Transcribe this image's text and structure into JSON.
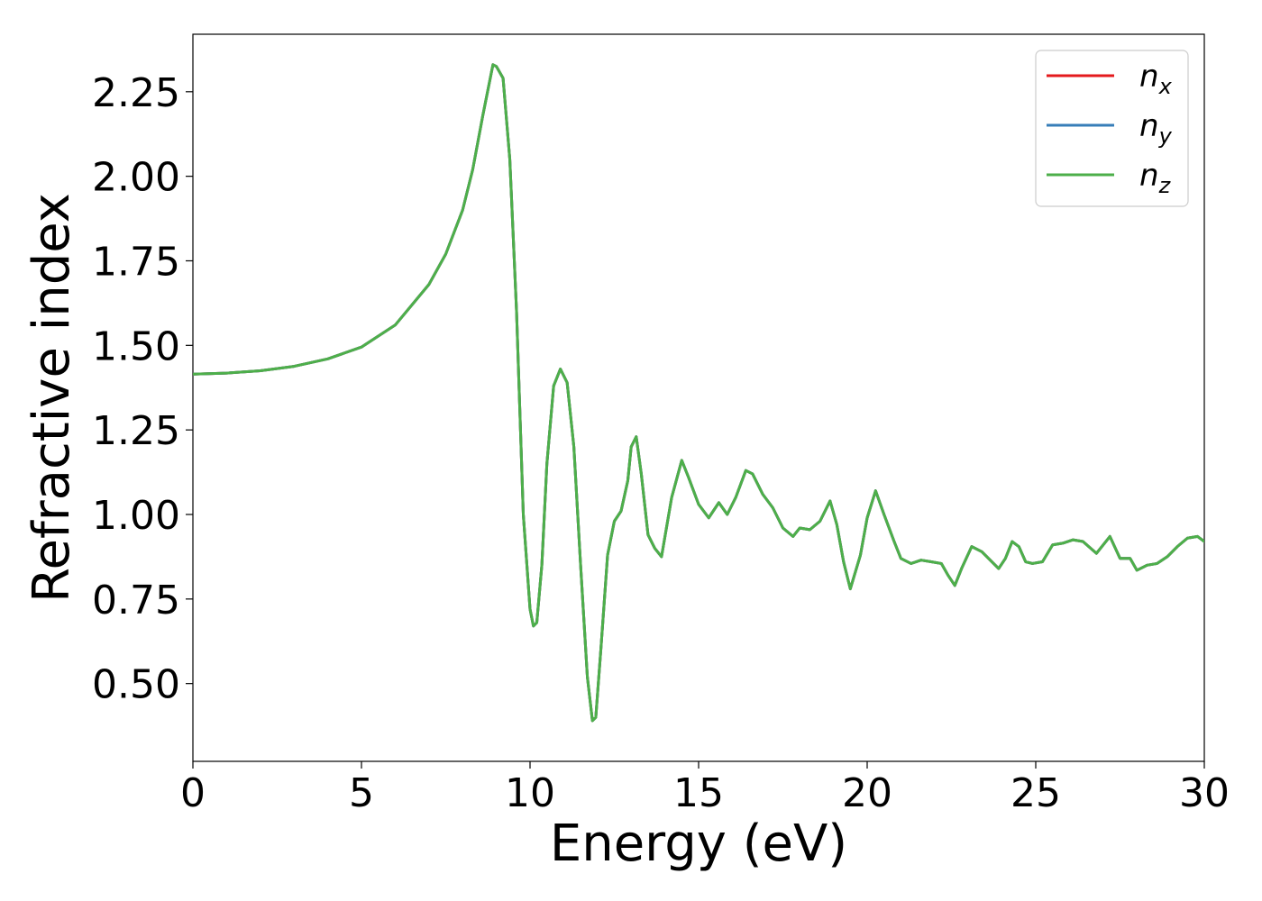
{
  "chart_data": {
    "type": "line",
    "title": "",
    "xlabel": "Energy (eV)",
    "ylabel": "Refractive index",
    "xlim": [
      0,
      30
    ],
    "ylim": [
      0.27,
      2.42
    ],
    "xticks": [
      0,
      5,
      10,
      15,
      20,
      25,
      30
    ],
    "xtick_labels": [
      "0",
      "5",
      "10",
      "15",
      "20",
      "25",
      "30"
    ],
    "yticks": [
      0.5,
      0.75,
      1.0,
      1.25,
      1.5,
      1.75,
      2.0,
      2.25
    ],
    "ytick_labels": [
      "0.50",
      "0.75",
      "1.00",
      "1.25",
      "1.50",
      "1.75",
      "2.00",
      "2.25"
    ],
    "grid": false,
    "legend_position": "top-right",
    "x": [
      0,
      1,
      2,
      3,
      4,
      5,
      6,
      7,
      7.5,
      8,
      8.3,
      8.6,
      8.9,
      9.0,
      9.2,
      9.4,
      9.6,
      9.8,
      10.0,
      10.1,
      10.2,
      10.35,
      10.5,
      10.7,
      10.9,
      11.1,
      11.3,
      11.5,
      11.7,
      11.85,
      11.95,
      12.1,
      12.3,
      12.5,
      12.7,
      12.9,
      13.0,
      13.15,
      13.3,
      13.5,
      13.7,
      13.9,
      14.2,
      14.5,
      14.7,
      15.0,
      15.3,
      15.6,
      15.85,
      16.1,
      16.4,
      16.6,
      16.9,
      17.2,
      17.5,
      17.8,
      18.0,
      18.3,
      18.6,
      18.9,
      19.1,
      19.3,
      19.5,
      19.8,
      20.0,
      20.25,
      20.5,
      20.8,
      21.0,
      21.3,
      21.6,
      21.9,
      22.2,
      22.4,
      22.6,
      22.8,
      23.1,
      23.4,
      23.7,
      23.9,
      24.1,
      24.3,
      24.5,
      24.7,
      24.9,
      25.2,
      25.5,
      25.8,
      26.1,
      26.4,
      26.8,
      27.2,
      27.5,
      27.8,
      28.0,
      28.3,
      28.6,
      28.9,
      29.2,
      29.5,
      29.8,
      30.0
    ],
    "series": [
      {
        "name": "n_x",
        "color": "#e41a1c",
        "values": [
          1.415,
          1.418,
          1.425,
          1.438,
          1.46,
          1.495,
          1.56,
          1.68,
          1.77,
          1.9,
          2.02,
          2.18,
          2.33,
          2.325,
          2.29,
          2.05,
          1.6,
          1.0,
          0.72,
          0.67,
          0.68,
          0.85,
          1.15,
          1.38,
          1.43,
          1.39,
          1.2,
          0.85,
          0.52,
          0.39,
          0.4,
          0.6,
          0.88,
          0.98,
          1.01,
          1.1,
          1.2,
          1.23,
          1.12,
          0.94,
          0.9,
          0.875,
          1.05,
          1.16,
          1.11,
          1.03,
          0.99,
          1.035,
          1.0,
          1.05,
          1.13,
          1.12,
          1.06,
          1.02,
          0.96,
          0.935,
          0.96,
          0.955,
          0.98,
          1.04,
          0.97,
          0.86,
          0.78,
          0.88,
          0.99,
          1.07,
          1.0,
          0.92,
          0.87,
          0.855,
          0.865,
          0.86,
          0.855,
          0.82,
          0.79,
          0.84,
          0.905,
          0.89,
          0.86,
          0.84,
          0.87,
          0.92,
          0.905,
          0.86,
          0.855,
          0.86,
          0.91,
          0.915,
          0.925,
          0.92,
          0.885,
          0.935,
          0.87,
          0.87,
          0.835,
          0.85,
          0.855,
          0.875,
          0.905,
          0.93,
          0.935,
          0.92
        ]
      },
      {
        "name": "n_y",
        "color": "#377eb8",
        "values": [
          1.415,
          1.418,
          1.425,
          1.438,
          1.46,
          1.495,
          1.56,
          1.68,
          1.77,
          1.9,
          2.02,
          2.18,
          2.33,
          2.325,
          2.29,
          2.05,
          1.6,
          1.0,
          0.72,
          0.67,
          0.68,
          0.85,
          1.15,
          1.38,
          1.43,
          1.39,
          1.2,
          0.85,
          0.52,
          0.39,
          0.4,
          0.6,
          0.88,
          0.98,
          1.01,
          1.1,
          1.2,
          1.23,
          1.12,
          0.94,
          0.9,
          0.875,
          1.05,
          1.16,
          1.11,
          1.03,
          0.99,
          1.035,
          1.0,
          1.05,
          1.13,
          1.12,
          1.06,
          1.02,
          0.96,
          0.935,
          0.96,
          0.955,
          0.98,
          1.04,
          0.97,
          0.86,
          0.78,
          0.88,
          0.99,
          1.07,
          1.0,
          0.92,
          0.87,
          0.855,
          0.865,
          0.86,
          0.855,
          0.82,
          0.79,
          0.84,
          0.905,
          0.89,
          0.86,
          0.84,
          0.87,
          0.92,
          0.905,
          0.86,
          0.855,
          0.86,
          0.91,
          0.915,
          0.925,
          0.92,
          0.885,
          0.935,
          0.87,
          0.87,
          0.835,
          0.85,
          0.855,
          0.875,
          0.905,
          0.93,
          0.935,
          0.92
        ]
      },
      {
        "name": "n_z",
        "color": "#4daf4a",
        "values": [
          1.415,
          1.418,
          1.425,
          1.438,
          1.46,
          1.495,
          1.56,
          1.68,
          1.77,
          1.9,
          2.02,
          2.18,
          2.33,
          2.325,
          2.29,
          2.05,
          1.6,
          1.0,
          0.72,
          0.67,
          0.68,
          0.85,
          1.15,
          1.38,
          1.43,
          1.39,
          1.2,
          0.85,
          0.52,
          0.39,
          0.4,
          0.6,
          0.88,
          0.98,
          1.01,
          1.1,
          1.2,
          1.23,
          1.12,
          0.94,
          0.9,
          0.875,
          1.05,
          1.16,
          1.11,
          1.03,
          0.99,
          1.035,
          1.0,
          1.05,
          1.13,
          1.12,
          1.06,
          1.02,
          0.96,
          0.935,
          0.96,
          0.955,
          0.98,
          1.04,
          0.97,
          0.86,
          0.78,
          0.88,
          0.99,
          1.07,
          1.0,
          0.92,
          0.87,
          0.855,
          0.865,
          0.86,
          0.855,
          0.82,
          0.79,
          0.84,
          0.905,
          0.89,
          0.86,
          0.84,
          0.87,
          0.92,
          0.905,
          0.86,
          0.855,
          0.86,
          0.91,
          0.915,
          0.925,
          0.92,
          0.885,
          0.935,
          0.87,
          0.87,
          0.835,
          0.85,
          0.855,
          0.875,
          0.905,
          0.93,
          0.935,
          0.92
        ]
      }
    ],
    "legend": [
      {
        "base": "n",
        "sub": "x",
        "color": "#e41a1c"
      },
      {
        "base": "n",
        "sub": "y",
        "color": "#377eb8"
      },
      {
        "base": "n",
        "sub": "z",
        "color": "#4daf4a"
      }
    ]
  }
}
